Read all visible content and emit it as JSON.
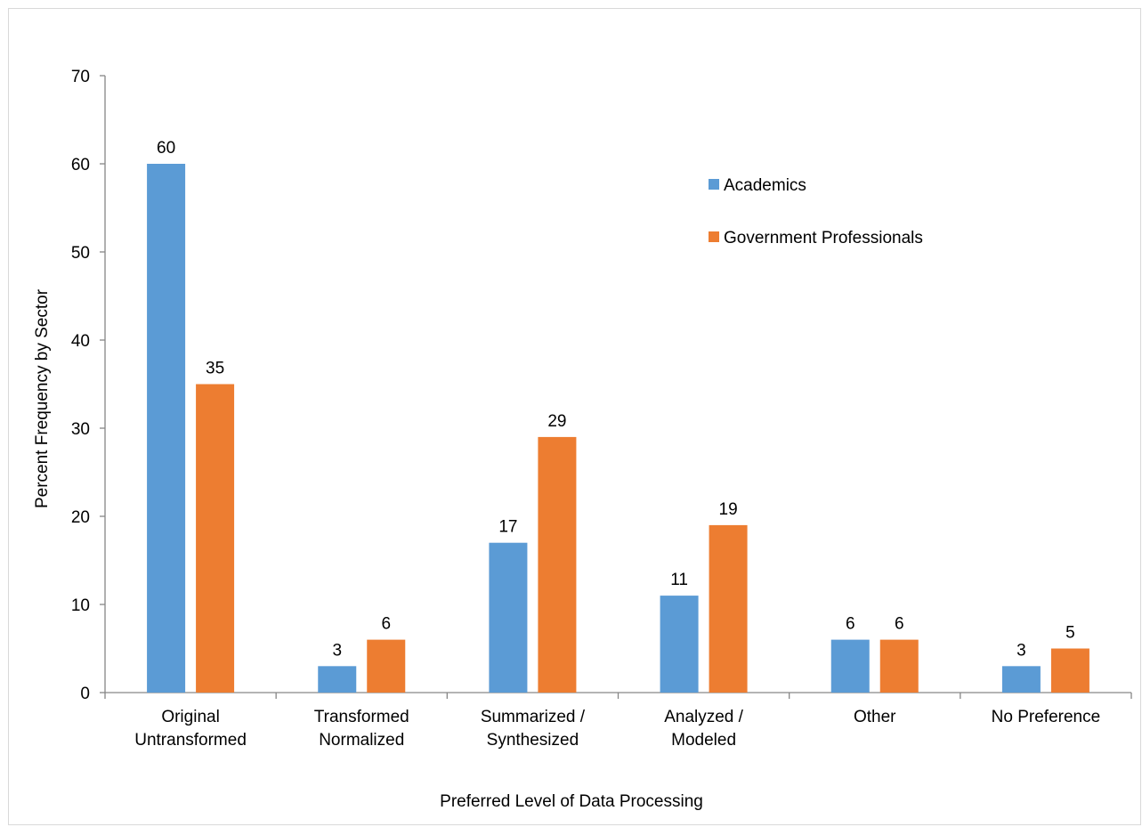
{
  "chart_data": {
    "type": "bar",
    "title": "",
    "xlabel": "Preferred Level of Data Processing",
    "ylabel": "Percent Frequency by Sector",
    "ylim": [
      0,
      70
    ],
    "yticks": [
      0,
      10,
      20,
      30,
      40,
      50,
      60,
      70
    ],
    "categories": [
      [
        "Original",
        "Untransformed"
      ],
      [
        "Transformed",
        "Normalized"
      ],
      [
        "Summarized /",
        "Synthesized"
      ],
      [
        "Analyzed /",
        "Modeled"
      ],
      [
        "Other"
      ],
      [
        "No Preference"
      ]
    ],
    "series": [
      {
        "name": "Academics",
        "color": "#5b9bd5",
        "values": [
          60,
          3,
          17,
          11,
          6,
          3
        ]
      },
      {
        "name": "Government Professionals",
        "color": "#ed7d31",
        "values": [
          35,
          6,
          29,
          19,
          6,
          5
        ]
      }
    ],
    "grid": false,
    "legend": "top-right",
    "data_labels": true
  }
}
